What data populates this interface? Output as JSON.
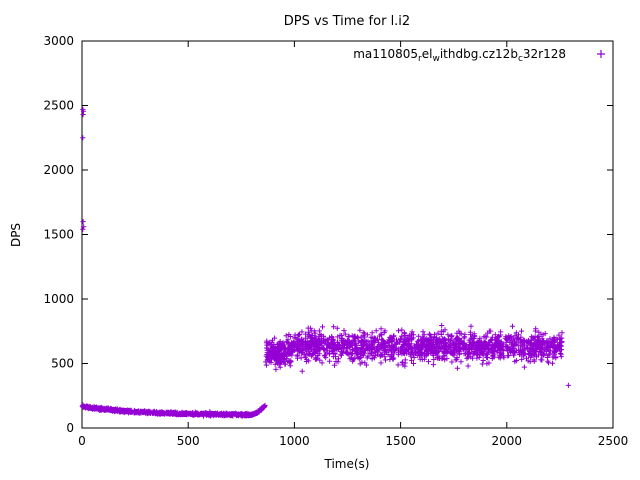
{
  "chart_data": {
    "type": "scatter",
    "title": "DPS vs Time for l.i2",
    "xlabel": "Time(s)",
    "ylabel": "DPS",
    "xlim": [
      0,
      2500
    ],
    "ylim": [
      0,
      3000
    ],
    "xticks": [
      0,
      500,
      1000,
      1500,
      2000,
      2500
    ],
    "yticks": [
      0,
      500,
      1000,
      1500,
      2000,
      2500,
      3000
    ],
    "grid": false,
    "marker": "plus",
    "marker_color": "#9400d3",
    "legend_position": "top-right-inside",
    "legend": {
      "seg1": "ma110805",
      "sub1": "r",
      "seg2": "el",
      "sub2": "w",
      "seg3": "ithdbg.cz12b",
      "sub3": "c",
      "seg4": "32r128"
    },
    "series_name": "ma110805_rel_withdbg.cz12b_c32r128",
    "bands": [
      {
        "mode": "decay",
        "x_start": 0,
        "x_end": 780,
        "count": 850,
        "y_start": 168,
        "y_end": 100,
        "tau": 260,
        "spread": 10
      },
      {
        "mode": "rise",
        "x_start": 780,
        "x_end": 862,
        "count": 130,
        "y_from": 100,
        "y_to": 172,
        "spread": 7
      },
      {
        "mode": "flat",
        "x_start": 865,
        "x_end": 960,
        "count": 160,
        "y_center": 578,
        "spread": 45,
        "y_min": 450,
        "y_max": 700
      },
      {
        "mode": "flat",
        "x_start": 960,
        "x_end": 2260,
        "count": 1500,
        "y_center": 632,
        "spread": 55,
        "y_min": 440,
        "y_max": 800
      }
    ],
    "outlier_points": [
      [
        4,
        2470
      ],
      [
        7,
        2455
      ],
      [
        5,
        2430
      ],
      [
        4,
        2250
      ],
      [
        5,
        1600
      ],
      [
        8,
        1560
      ],
      [
        4,
        1540
      ],
      [
        2290,
        330
      ]
    ],
    "prng_seed": 42
  }
}
